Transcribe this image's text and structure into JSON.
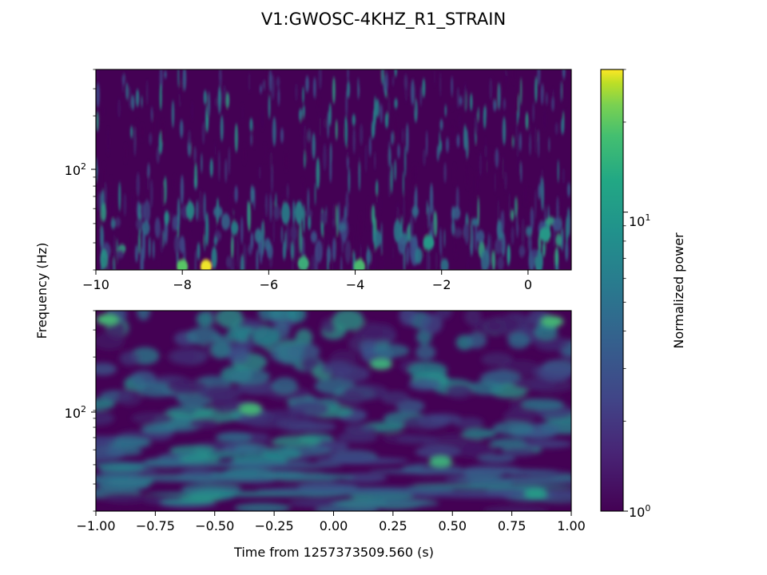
{
  "title": "V1:GWOSC-4KHZ_R1_STRAIN",
  "ylabel": "Frequency (Hz)",
  "xlabel": "Time from 1257373509.560 (s)",
  "colorbar": {
    "label": "Normalized power",
    "scale": "log",
    "range": [
      1,
      30
    ],
    "colormap": "viridis",
    "ticks": [
      {
        "base": "10",
        "exp": "0"
      },
      {
        "base": "10",
        "exp": "1"
      }
    ]
  },
  "chart_data": [
    {
      "type": "heatmap",
      "panel": "top",
      "xlabel": "",
      "ylabel": "Frequency (Hz)",
      "xlim": [
        -10,
        1
      ],
      "yscale": "log",
      "ylim": [
        20,
        400
      ],
      "xticks": [
        -10,
        -8,
        -6,
        -4,
        -2,
        0
      ],
      "xtick_labels": [
        "−10",
        "−8",
        "−6",
        "−4",
        "−2",
        "0"
      ],
      "yticks": [
        {
          "value": 100,
          "base": "10",
          "exp": "2"
        }
      ],
      "hotspots": [
        {
          "t": -7.45,
          "f": 21,
          "power": 28
        },
        {
          "t": -8.0,
          "f": 21,
          "power": 12
        },
        {
          "t": -3.9,
          "f": 21,
          "power": 10
        },
        {
          "t": -5.2,
          "f": 22,
          "power": 8
        },
        {
          "t": -2.3,
          "f": 30,
          "power": 6
        },
        {
          "t": 0.4,
          "f": 34,
          "power": 6
        }
      ]
    },
    {
      "type": "heatmap",
      "panel": "bottom",
      "xlabel": "Time from 1257373509.560 (s)",
      "ylabel": "Frequency (Hz)",
      "xlim": [
        -1,
        1
      ],
      "yscale": "log",
      "ylim": [
        20,
        400
      ],
      "xticks": [
        -1,
        -0.75,
        -0.5,
        -0.25,
        0,
        0.25,
        0.5,
        0.75,
        1
      ],
      "xtick_labels": [
        "−1.00",
        "−0.75",
        "−0.50",
        "−0.25",
        "0.00",
        "0.25",
        "0.50",
        "0.75",
        "1.00"
      ],
      "yticks": [
        {
          "value": 100,
          "base": "10",
          "exp": "2"
        }
      ],
      "hotspots": [
        {
          "t": -0.35,
          "f": 92,
          "power": 9
        },
        {
          "t": 0.45,
          "f": 42,
          "power": 8
        },
        {
          "t": 0.2,
          "f": 180,
          "power": 8
        },
        {
          "t": -0.95,
          "f": 350,
          "power": 9
        },
        {
          "t": 0.92,
          "f": 340,
          "power": 9
        },
        {
          "t": 0.85,
          "f": 26,
          "power": 6
        }
      ]
    }
  ]
}
